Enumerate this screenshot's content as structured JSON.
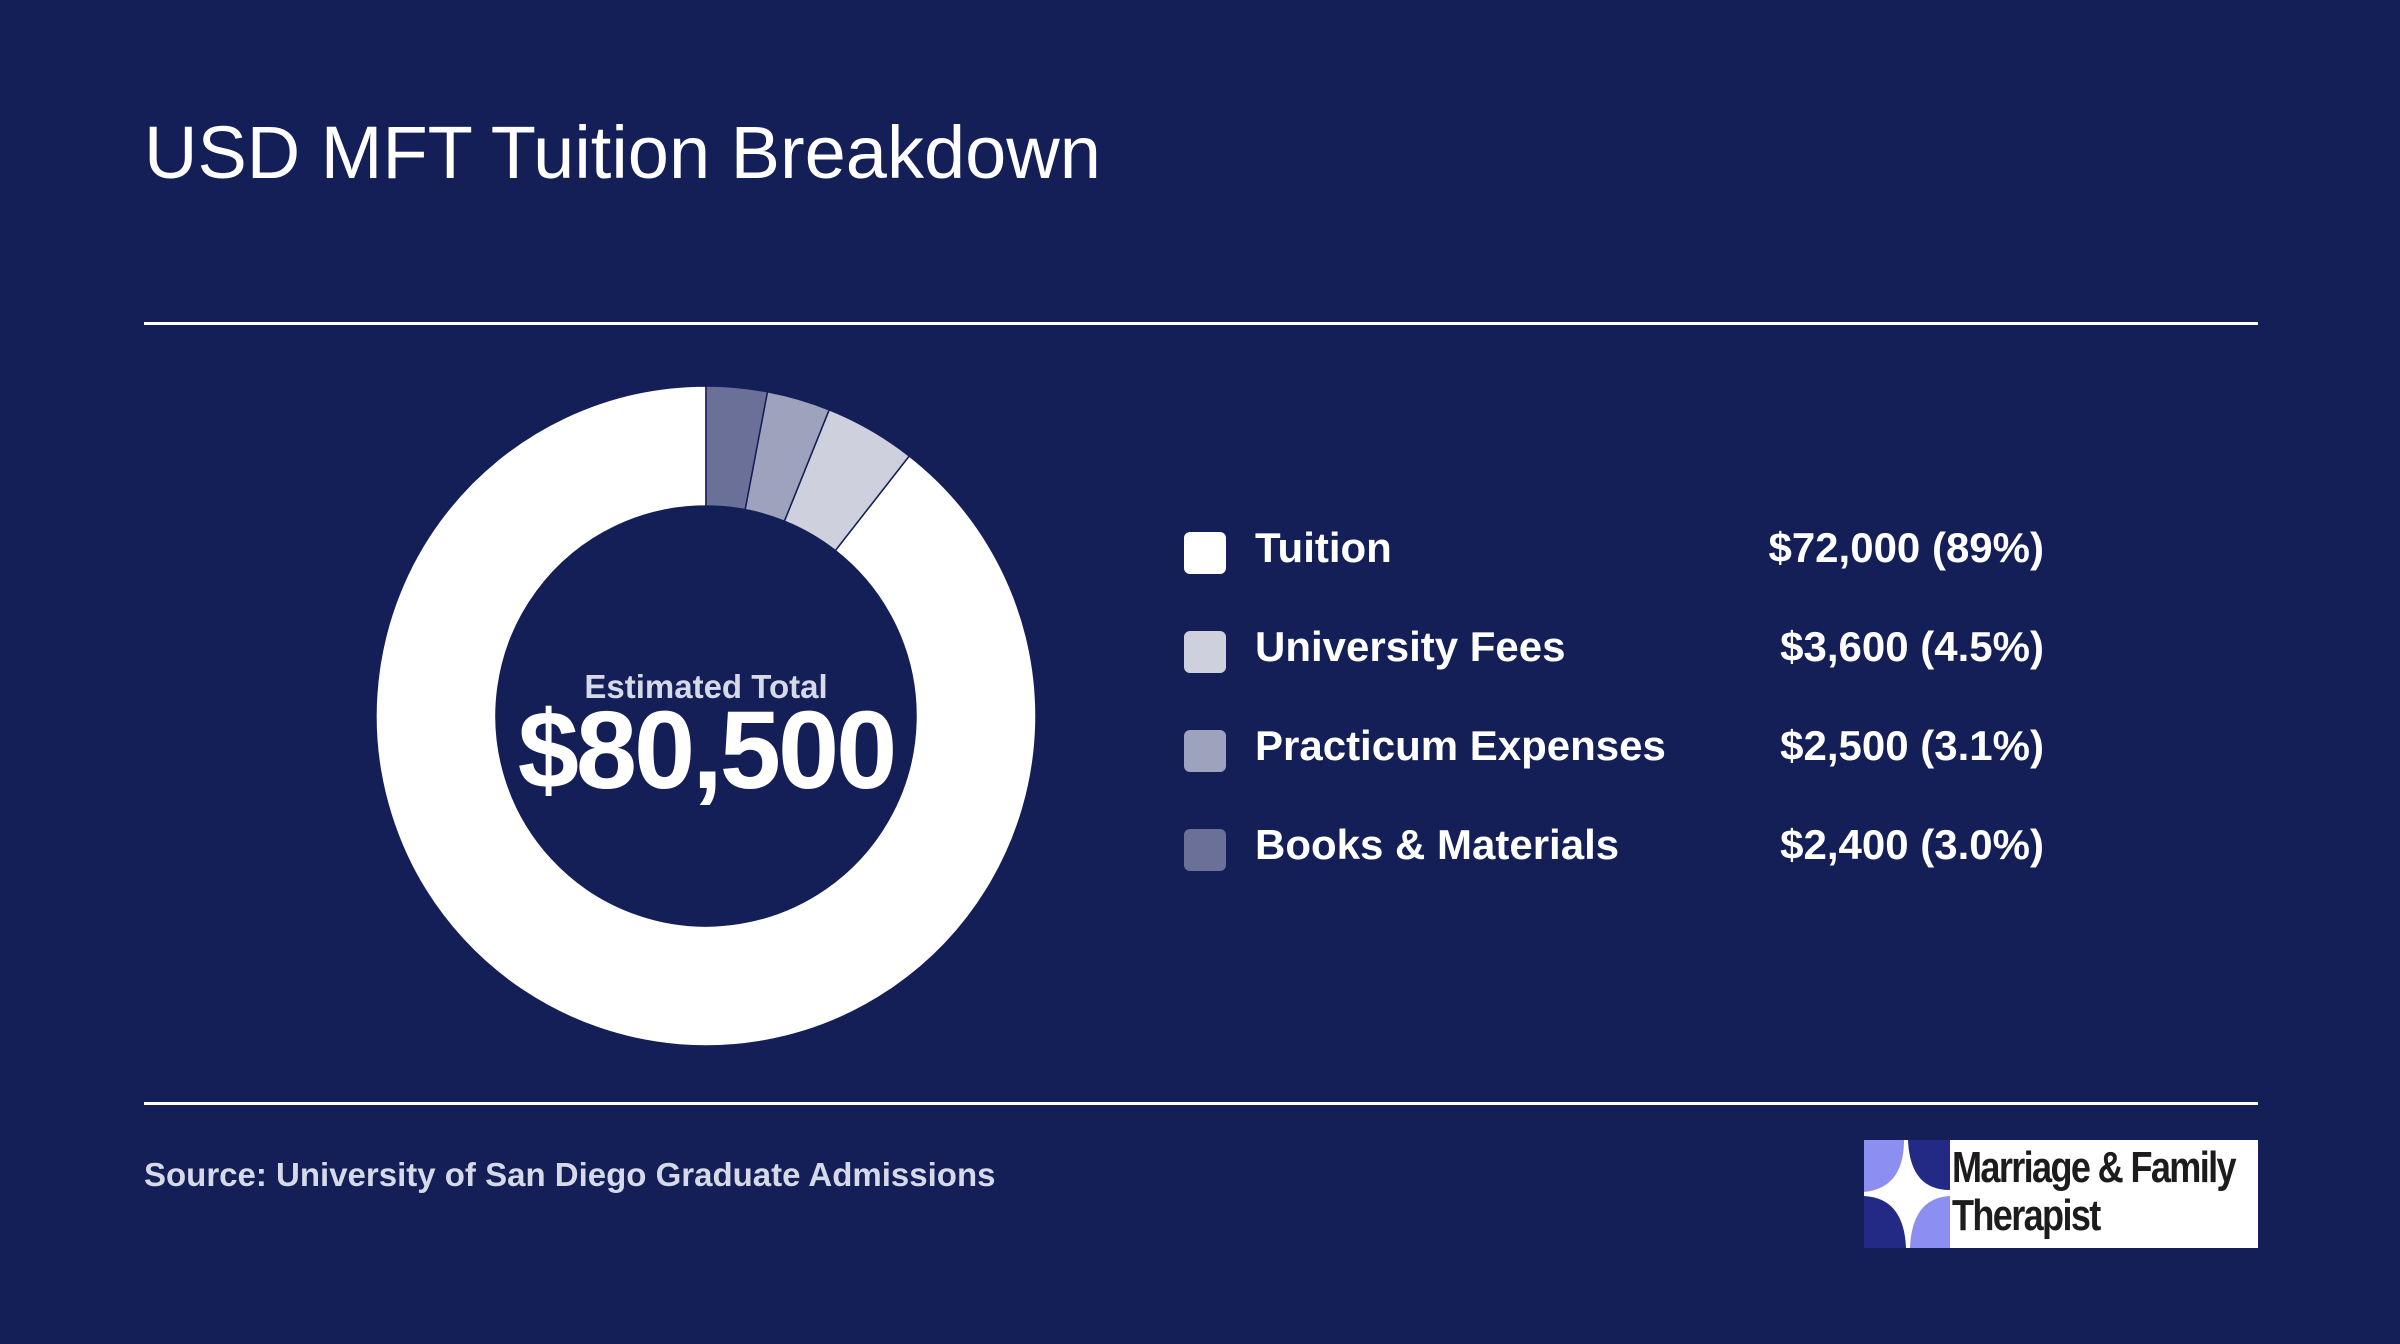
{
  "title": "USD MFT Tuition Breakdown",
  "center": {
    "label": "Estimated Total",
    "value": "$80,500"
  },
  "legend": [
    {
      "label": "Tuition",
      "value": "$72,000 (89%)",
      "color": "#ffffff"
    },
    {
      "label": "University Fees",
      "value": "$3,600 (4.5%)",
      "color": "#ced0de"
    },
    {
      "label": "Practicum Expenses",
      "value": "$2,500 (3.1%)",
      "color": "#9da2bd"
    },
    {
      "label": "Books & Materials",
      "value": "$2,400 (3.0%)",
      "color": "#6a7098"
    }
  ],
  "source": "Source: University of San Diego Graduate Admissions",
  "logo": {
    "line1": "Marriage & Family",
    "line2": "Therapist"
  },
  "colors": {
    "background": "#141f58",
    "text": "#ffffff"
  },
  "chart_data": {
    "type": "pie",
    "style": "donut",
    "categories": [
      "Tuition",
      "University Fees",
      "Practicum Expenses",
      "Books & Materials"
    ],
    "values": [
      72000,
      3600,
      2500,
      2400
    ],
    "percent_labels": [
      "89%",
      "4.5%",
      "3.1%",
      "3.0%"
    ],
    "colors": [
      "#ffffff",
      "#ced0de",
      "#9da2bd",
      "#6a7098"
    ],
    "total": 80500,
    "start": "top",
    "direction": "clockwise",
    "legend_position": "right"
  }
}
